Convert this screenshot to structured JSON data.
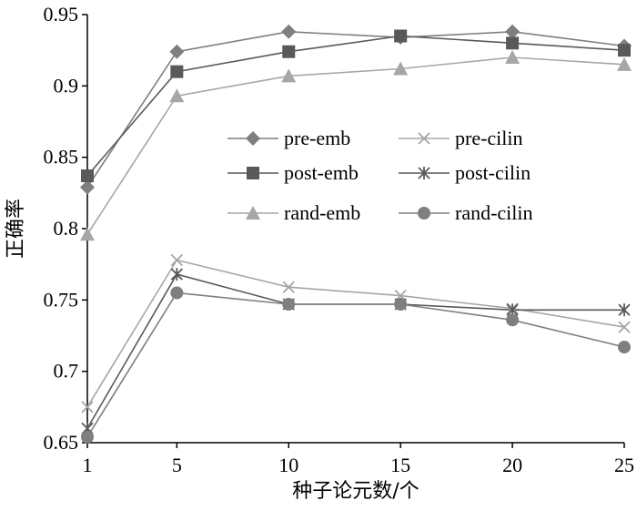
{
  "chart_data": {
    "type": "line",
    "xlabel": "种子论元数/个",
    "ylabel": "正确率",
    "x": [
      1,
      5,
      10,
      15,
      20,
      25
    ],
    "xticks": [
      "1",
      "5",
      "10",
      "15",
      "20",
      "25"
    ],
    "yticks": [
      "0.65",
      "0.7",
      "0.75",
      "0.8",
      "0.85",
      "0.9",
      "0.95"
    ],
    "ylim": [
      0.65,
      0.95
    ],
    "grid": false,
    "legend_position": "center",
    "series": [
      {
        "name": "pre-emb",
        "values": [
          0.829,
          0.924,
          0.938,
          0.934,
          0.938,
          0.928
        ],
        "color": "#7f7f7f",
        "marker": "diamond"
      },
      {
        "name": "pre-cilin",
        "values": [
          0.675,
          0.778,
          0.759,
          0.753,
          0.744,
          0.731
        ],
        "color": "#a6a6a6",
        "marker": "x"
      },
      {
        "name": "post-emb",
        "values": [
          0.837,
          0.91,
          0.924,
          0.935,
          0.93,
          0.925
        ],
        "color": "#595959",
        "marker": "square"
      },
      {
        "name": "post-cilin",
        "values": [
          0.66,
          0.768,
          0.747,
          0.747,
          0.743,
          0.743
        ],
        "color": "#595959",
        "marker": "asterisk"
      },
      {
        "name": "rand-emb",
        "values": [
          0.796,
          0.893,
          0.907,
          0.912,
          0.92,
          0.915
        ],
        "color": "#a6a6a6",
        "marker": "triangle"
      },
      {
        "name": "rand-cilin",
        "values": [
          0.654,
          0.755,
          0.747,
          0.747,
          0.736,
          0.717
        ],
        "color": "#7f7f7f",
        "marker": "circle"
      }
    ]
  }
}
